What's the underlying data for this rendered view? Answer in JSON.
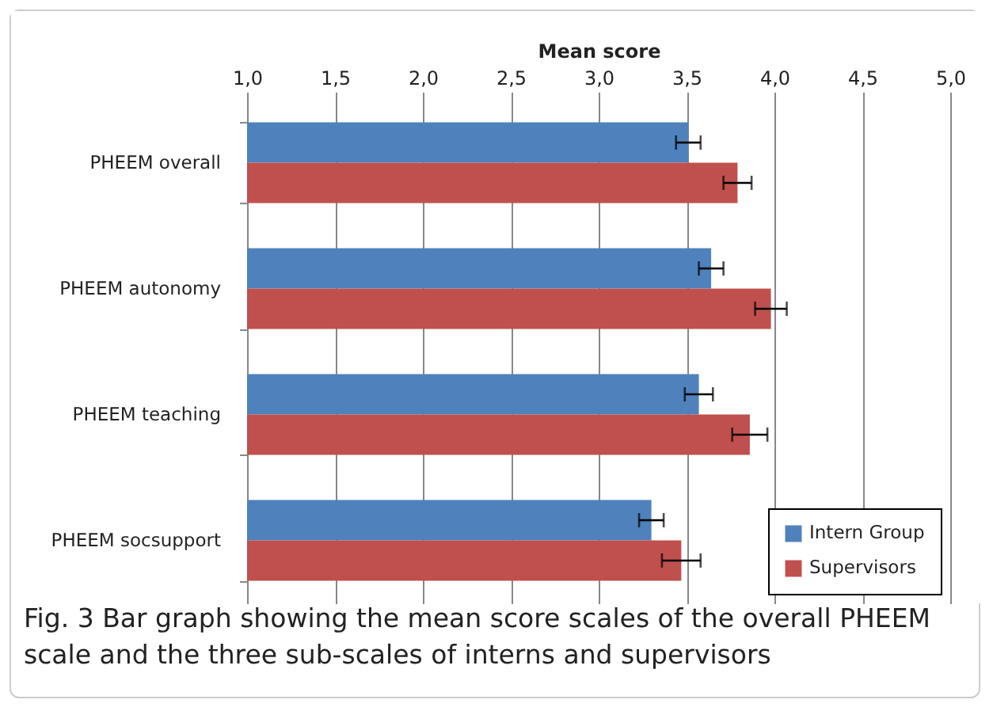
{
  "chart_data": {
    "type": "bar",
    "orientation": "horizontal",
    "xlabel": "Mean score",
    "categories": [
      "PHEEM overall",
      "PHEEM autonomy",
      "PHEEM teaching",
      "PHEEM socsupport"
    ],
    "series": [
      {
        "name": "Intern Group",
        "color": "#4f81bd",
        "values": [
          3.51,
          3.64,
          3.57,
          3.3
        ],
        "errors": [
          0.07,
          0.07,
          0.08,
          0.07
        ]
      },
      {
        "name": "Supervisors",
        "color": "#c0504d",
        "values": [
          3.79,
          3.98,
          3.86,
          3.47
        ],
        "errors": [
          0.08,
          0.09,
          0.1,
          0.11
        ]
      }
    ],
    "xlim": [
      1,
      5
    ],
    "xticks": [
      {
        "value": 1,
        "label": "1,0"
      },
      {
        "value": 1.5,
        "label": "1,5"
      },
      {
        "value": 2,
        "label": "2,0"
      },
      {
        "value": 2.5,
        "label": "2,5"
      },
      {
        "value": 3,
        "label": "3,0"
      },
      {
        "value": 3.5,
        "label": "3,5"
      },
      {
        "value": 4,
        "label": "4,0"
      },
      {
        "value": 4.5,
        "label": "4,5"
      },
      {
        "value": 5,
        "label": "5,0"
      }
    ],
    "grid": "x",
    "legend": "bottom right",
    "annotations": [
      "Fig. 3 Bar graph showing the mean score scales of the overall PHEEM scale and the three sub-scales of interns and supervisors"
    ]
  }
}
